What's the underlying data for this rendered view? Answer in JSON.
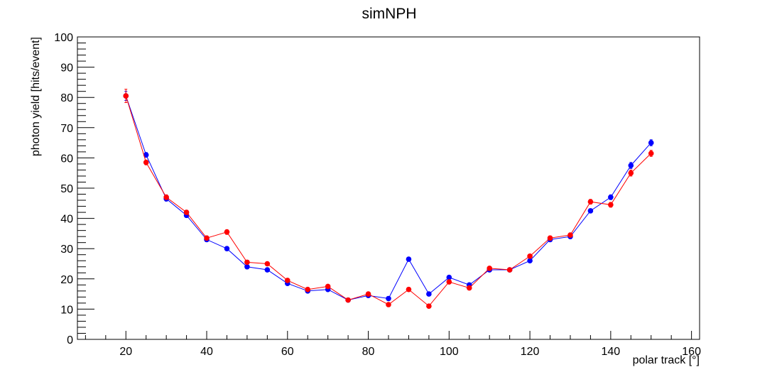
{
  "chart_data": {
    "type": "line",
    "title": "simNPH",
    "xlabel": "polar track [°]",
    "ylabel": "photon yield [hits/event]",
    "xlim": [
      8,
      162
    ],
    "ylim": [
      0,
      100
    ],
    "x_ticks": [
      20,
      40,
      60,
      80,
      100,
      120,
      140,
      160
    ],
    "x_tick_labels": [
      "20",
      "40",
      "60",
      "80",
      "100",
      "120",
      "140",
      "160"
    ],
    "y_ticks": [
      0,
      10,
      20,
      30,
      40,
      50,
      60,
      70,
      80,
      90,
      100
    ],
    "y_tick_labels": [
      "0",
      "10",
      "20",
      "30",
      "40",
      "50",
      "60",
      "70",
      "80",
      "90",
      "100"
    ],
    "grid": false,
    "x": [
      20,
      25,
      30,
      35,
      40,
      45,
      50,
      55,
      60,
      65,
      70,
      75,
      80,
      85,
      90,
      95,
      100,
      105,
      110,
      115,
      120,
      125,
      130,
      135,
      140,
      145,
      150
    ],
    "series": [
      {
        "color": "#0000ff",
        "values": [
          80.5,
          61.0,
          46.5,
          41.0,
          33.0,
          30.0,
          24.0,
          23.0,
          18.5,
          16.0,
          16.5,
          13.0,
          14.5,
          13.5,
          26.5,
          15.0,
          20.5,
          18.0,
          23.0,
          23.0,
          26.0,
          33.0,
          34.0,
          42.5,
          47.0,
          57.5,
          65.0
        ],
        "errors": [
          1.5,
          0.8,
          0.8,
          0.7,
          0.7,
          0.7,
          0.6,
          0.6,
          0.6,
          0.5,
          0.5,
          0.5,
          0.5,
          0.5,
          0.6,
          0.5,
          0.6,
          0.5,
          0.6,
          0.6,
          0.6,
          0.7,
          0.7,
          0.7,
          0.8,
          1.0,
          1.0
        ]
      },
      {
        "color": "#ff0000",
        "values": [
          80.5,
          58.5,
          47.0,
          42.0,
          33.5,
          35.5,
          25.5,
          25.0,
          19.5,
          16.5,
          17.5,
          13.0,
          15.0,
          11.5,
          16.5,
          11.0,
          19.0,
          17.0,
          23.5,
          23.0,
          27.5,
          33.5,
          34.5,
          45.5,
          44.5,
          55.0,
          61.5
        ],
        "errors": [
          2.2,
          0.8,
          0.8,
          0.7,
          0.7,
          0.8,
          0.6,
          0.6,
          0.6,
          0.5,
          0.5,
          0.5,
          0.5,
          0.5,
          0.5,
          0.5,
          0.6,
          0.5,
          0.6,
          0.6,
          0.6,
          0.7,
          0.7,
          0.8,
          0.8,
          1.0,
          1.0
        ]
      }
    ]
  }
}
